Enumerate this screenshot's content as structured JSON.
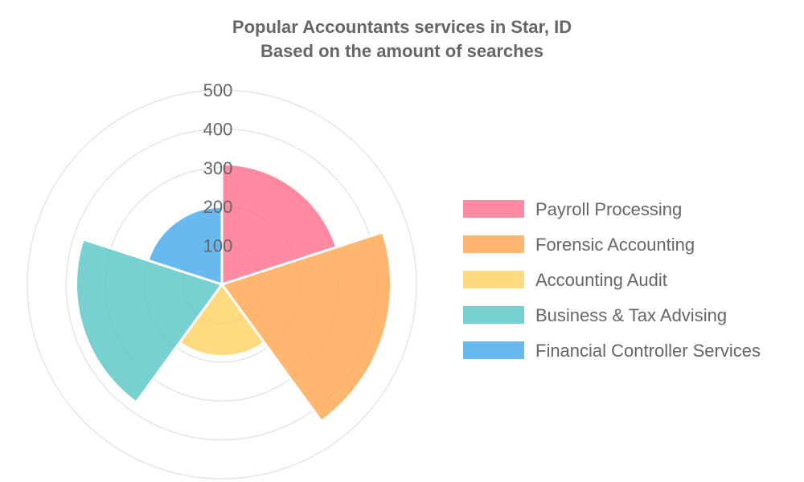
{
  "chart_data": {
    "type": "polarArea",
    "title": "Popular Accountants services in Star, ID",
    "subtitle": "Based on the amount of searches",
    "categories": [
      "Payroll Processing",
      "Forensic Accounting",
      "Accounting Audit",
      "Business & Tax Advising",
      "Financial Controller Services"
    ],
    "values": [
      310,
      435,
      185,
      375,
      200
    ],
    "colors": [
      "#ff6384",
      "#ff9f40",
      "#ffcd56",
      "#4bc0c0",
      "#36a2eb"
    ],
    "rlim": [
      0,
      500
    ],
    "r_ticks": [
      100,
      200,
      300,
      400,
      500
    ],
    "grid": true,
    "legend_position": "right"
  }
}
